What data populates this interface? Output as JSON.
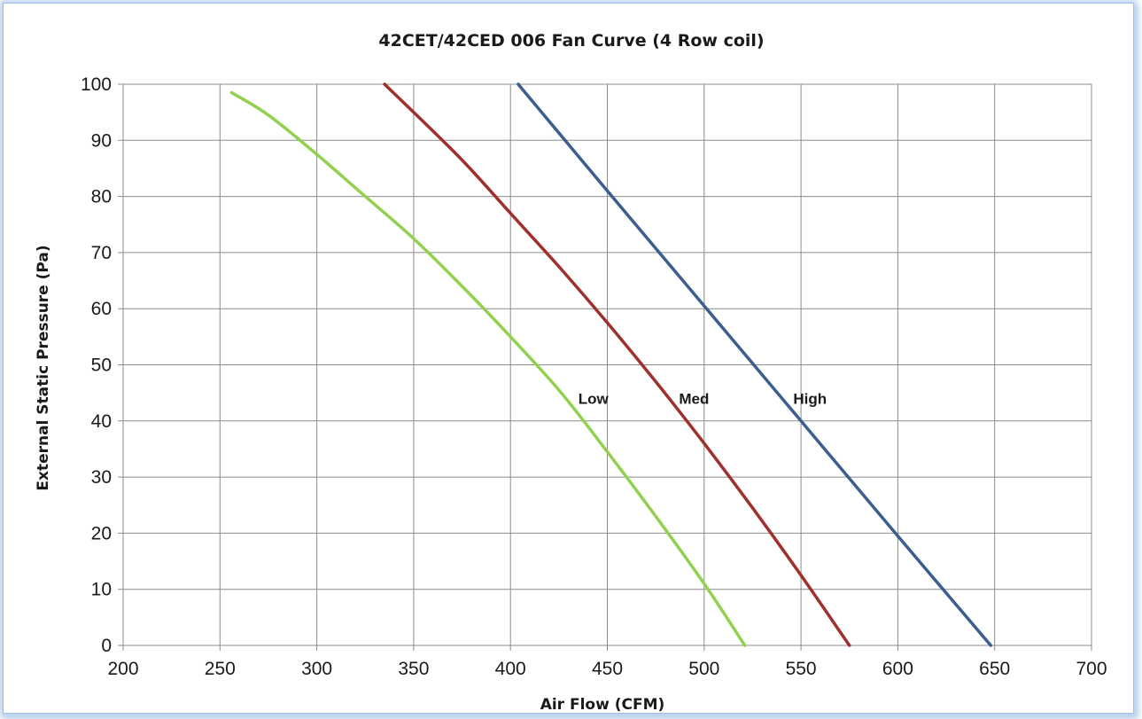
{
  "chart_data": {
    "type": "line",
    "title": "42CET/42CED 006 Fan Curve (4 Row coil)",
    "xlabel": "Air Flow (CFM)",
    "ylabel": "External Static Pressure (Pa)",
    "xlim": [
      200,
      700
    ],
    "ylim": [
      0,
      100
    ],
    "xticks": [
      200,
      250,
      300,
      350,
      400,
      450,
      500,
      550,
      600,
      650,
      700
    ],
    "yticks": [
      0,
      10,
      20,
      30,
      40,
      50,
      60,
      70,
      80,
      90,
      100
    ],
    "grid": true,
    "series": [
      {
        "name": "Low",
        "color": "#92d050",
        "points": [
          [
            256,
            98.5
          ],
          [
            275,
            94.5
          ],
          [
            300,
            87.5
          ],
          [
            325,
            80
          ],
          [
            350,
            72.5
          ],
          [
            375,
            64
          ],
          [
            400,
            55
          ],
          [
            425,
            45.5
          ],
          [
            450,
            34.5
          ],
          [
            475,
            23
          ],
          [
            500,
            11
          ],
          [
            521,
            0
          ]
        ],
        "label_at": [
          435,
          44
        ]
      },
      {
        "name": "Med",
        "color": "#a0302e",
        "points": [
          [
            335,
            100
          ],
          [
            350,
            95
          ],
          [
            375,
            86.5
          ],
          [
            400,
            77
          ],
          [
            425,
            67.5
          ],
          [
            450,
            57.5
          ],
          [
            475,
            47
          ],
          [
            500,
            36
          ],
          [
            525,
            24.5
          ],
          [
            550,
            12.5
          ],
          [
            575,
            0
          ]
        ],
        "label_at": [
          487,
          44
        ]
      },
      {
        "name": "High",
        "color": "#3b5e8f",
        "points": [
          [
            404,
            100
          ],
          [
            450,
            81
          ],
          [
            500,
            60.5
          ],
          [
            550,
            40
          ],
          [
            600,
            19.5
          ],
          [
            648,
            0
          ]
        ],
        "label_at": [
          546,
          44
        ]
      }
    ]
  }
}
